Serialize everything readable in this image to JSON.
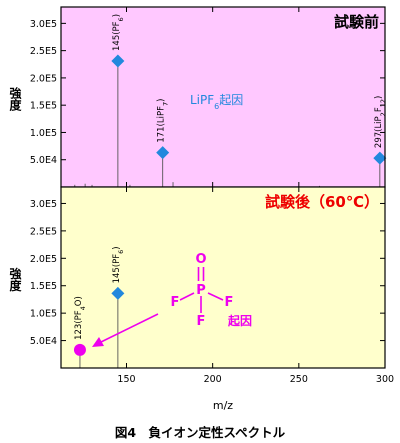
{
  "caption": "図4　負イオン定性スペクトル",
  "chart_data": [
    {
      "type": "line",
      "panel": "top",
      "title": "試験前",
      "ylabel": "強度",
      "xlabel": "",
      "xlim": [
        112,
        300
      ],
      "ylim": [
        0,
        330000
      ],
      "background": "#ffc8ff",
      "yticks": [
        "5.0E4",
        "1.0E5",
        "1.5E5",
        "2.0E5",
        "2.5E5",
        "3.0E5"
      ],
      "ytick_values": [
        50000,
        100000,
        150000,
        200000,
        250000,
        300000
      ],
      "annotation": {
        "text": "LiPF",
        "sub": "6",
        "suffix": "起因",
        "color": "#2288dd"
      },
      "peaks": [
        {
          "x": 145,
          "y": 231000,
          "label": "145(PF",
          "sub": "6",
          "close": ")",
          "marker": true
        },
        {
          "x": 171,
          "y": 63000,
          "label": "171(LiPF",
          "sub": "7",
          "close": ")",
          "marker": true
        },
        {
          "x": 297,
          "y": 53000,
          "label": "297(LiP",
          "sub": "2",
          "mid": "F",
          "sub2": "12",
          "close": ")",
          "marker": true
        },
        {
          "x": 120,
          "y": 4000
        },
        {
          "x": 126,
          "y": 6000
        },
        {
          "x": 130,
          "y": 4000
        },
        {
          "x": 152,
          "y": 4000
        },
        {
          "x": 177,
          "y": 9000
        },
        {
          "x": 262,
          "y": 2000
        }
      ]
    },
    {
      "type": "line",
      "panel": "bottom",
      "title": "試験後（60℃）",
      "title_color": "#ee0000",
      "ylabel": "強度",
      "xlabel": "m/z",
      "xlim": [
        112,
        300
      ],
      "ylim": [
        0,
        330000
      ],
      "background": "#ffffcc",
      "yticks": [
        "5.0E4",
        "1.0E5",
        "1.5E5",
        "2.0E5",
        "2.5E5",
        "3.0E5"
      ],
      "ytick_values": [
        50000,
        100000,
        150000,
        200000,
        250000,
        300000
      ],
      "xticks": [
        "150",
        "200",
        "250",
        "300"
      ],
      "xtick_values": [
        150,
        200,
        250,
        300
      ],
      "peaks": [
        {
          "x": 145,
          "y": 136000,
          "label": "145(PF",
          "sub": "6",
          "close": ")",
          "marker": true,
          "marker_color": "#2288dd"
        },
        {
          "x": 123,
          "y": 33000,
          "label": "123(PF",
          "sub": "4",
          "suffix": "O)",
          "marker": true,
          "marker_color": "#ee00ee"
        }
      ],
      "structure": {
        "top": "O",
        "center": "P",
        "left": "F",
        "right": "F",
        "bottom": "F",
        "note": "起因",
        "color": "#ee00ee"
      }
    }
  ]
}
